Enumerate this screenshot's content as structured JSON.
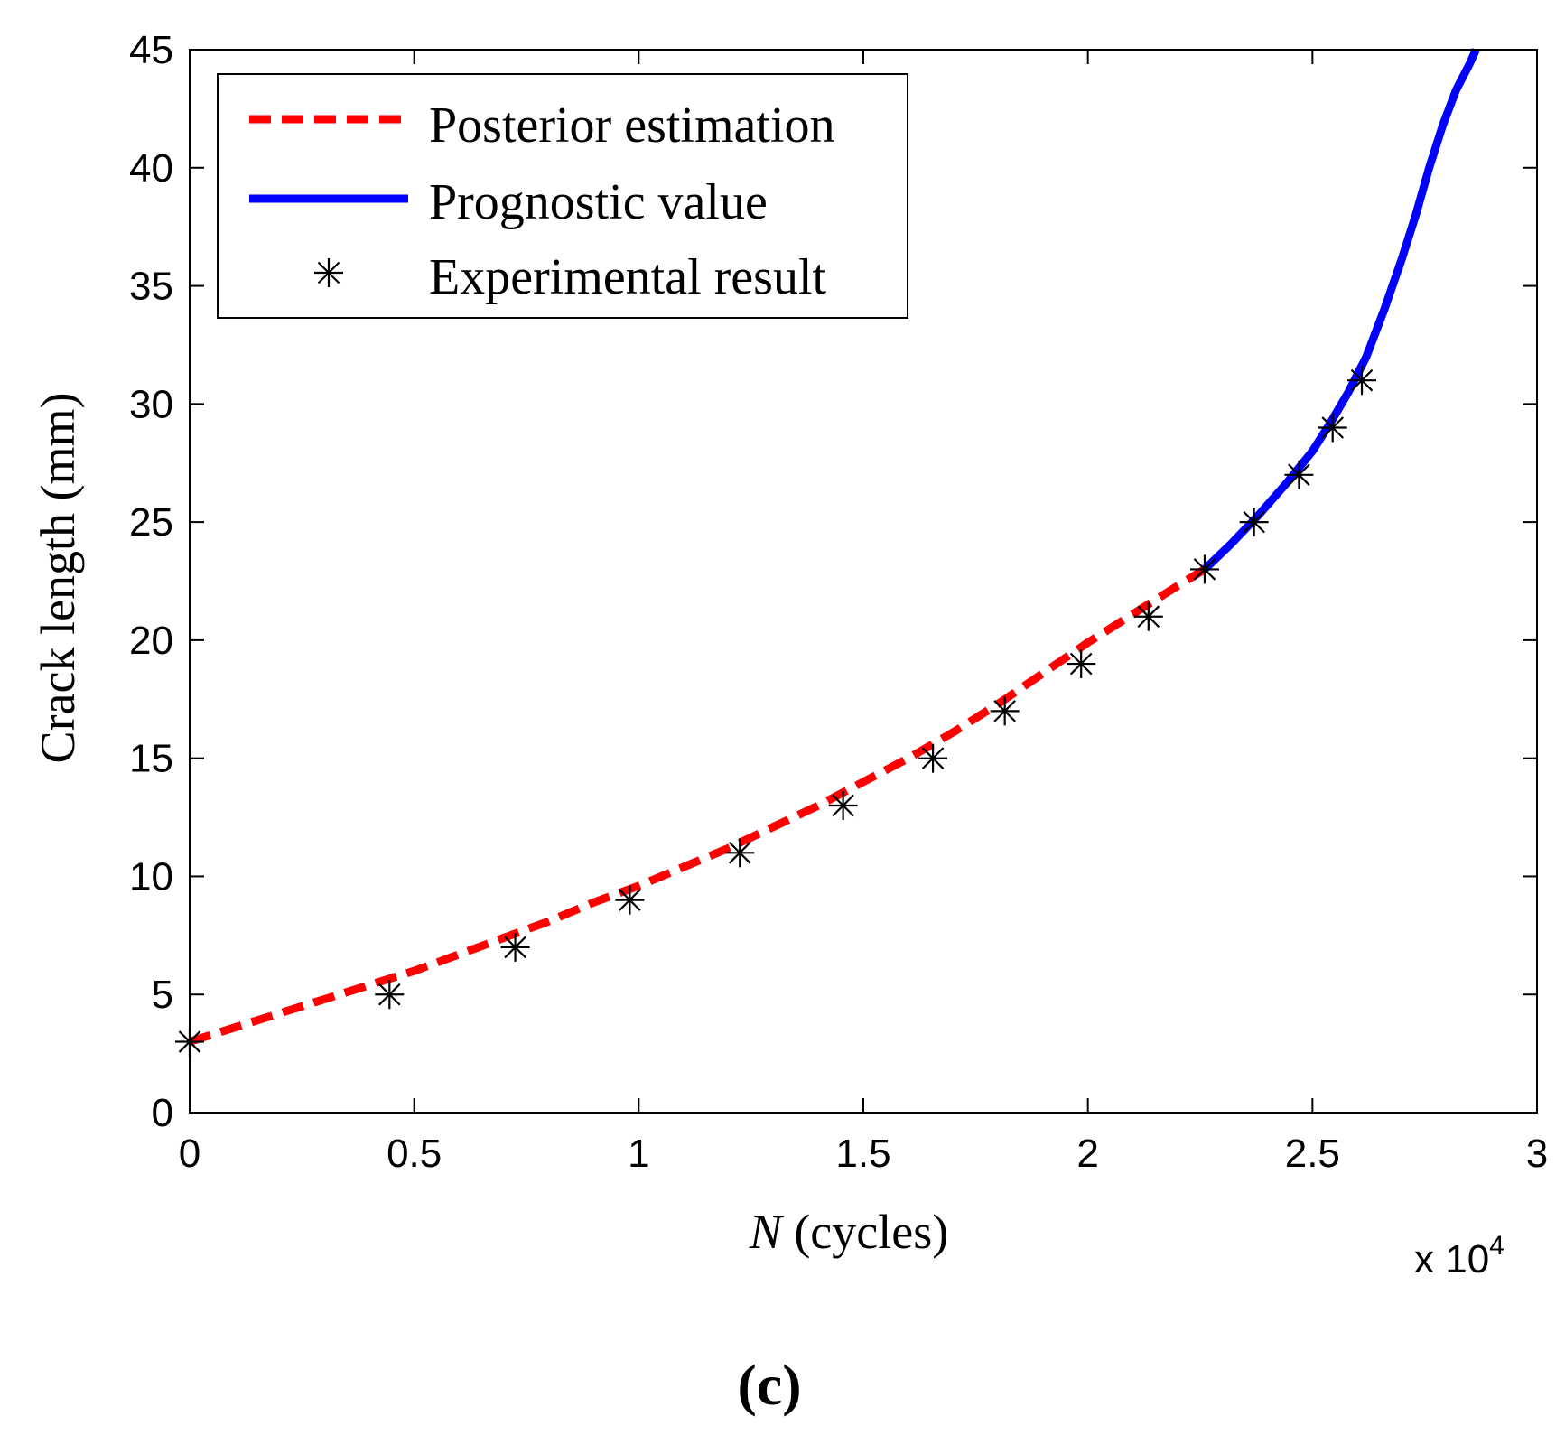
{
  "chart_data": {
    "type": "line",
    "title": "",
    "xlabel_var": "N",
    "xlabel_rest": " (cycles)",
    "ylabel": "Crack length (mm)",
    "x_multiplier": "x 10",
    "x_multiplier_exp": "4",
    "panel_label": "(c)",
    "xlim": [
      0,
      3
    ],
    "ylim": [
      0,
      45
    ],
    "x_ticks": [
      0,
      0.5,
      1,
      1.5,
      2,
      2.5,
      3
    ],
    "x_tick_labels": [
      "0",
      "0.5",
      "1",
      "1.5",
      "2",
      "2.5",
      "3"
    ],
    "y_ticks": [
      0,
      5,
      10,
      15,
      20,
      25,
      30,
      35,
      40,
      45
    ],
    "y_tick_labels": [
      "0",
      "5",
      "10",
      "15",
      "20",
      "25",
      "30",
      "35",
      "40",
      "45"
    ],
    "legend_position": "top-left",
    "series": [
      {
        "name": "Posterior estimation",
        "style": "dashed",
        "color": "#ff0000",
        "x": [
          0,
          0.1,
          0.2,
          0.3,
          0.4,
          0.5,
          0.6,
          0.7,
          0.8,
          0.9,
          1.0,
          1.1,
          1.2,
          1.3,
          1.4,
          1.5,
          1.6,
          1.7,
          1.8,
          1.9,
          2.0,
          2.1,
          2.2,
          2.26
        ],
        "y": [
          3.0,
          3.6,
          4.2,
          4.8,
          5.4,
          6.0,
          6.7,
          7.4,
          8.1,
          8.9,
          9.6,
          10.4,
          11.2,
          12.1,
          13.0,
          14.0,
          15.0,
          16.1,
          17.3,
          18.6,
          19.9,
          21.1,
          22.3,
          23.0
        ]
      },
      {
        "name": "Prognostic value",
        "style": "solid",
        "color": "#0000ff",
        "x": [
          2.26,
          2.32,
          2.38,
          2.44,
          2.5,
          2.54,
          2.58,
          2.62,
          2.66,
          2.7,
          2.73,
          2.76,
          2.79,
          2.82,
          2.85,
          2.864
        ],
        "y": [
          23.0,
          24.1,
          25.3,
          26.6,
          28.0,
          29.2,
          30.5,
          32.0,
          34.0,
          36.2,
          38.0,
          40.0,
          41.8,
          43.3,
          44.4,
          45.0
        ]
      },
      {
        "name": "Experimental result",
        "style": "marker-asterisk",
        "color": "#000000",
        "x": [
          0,
          0.445,
          0.725,
          0.98,
          1.225,
          1.455,
          1.655,
          1.815,
          1.985,
          2.135,
          2.26,
          2.37,
          2.47,
          2.545,
          2.61
        ],
        "y": [
          3,
          5,
          7,
          9,
          11,
          13,
          15,
          17,
          19,
          21,
          23,
          25,
          27,
          29,
          31
        ]
      }
    ]
  }
}
